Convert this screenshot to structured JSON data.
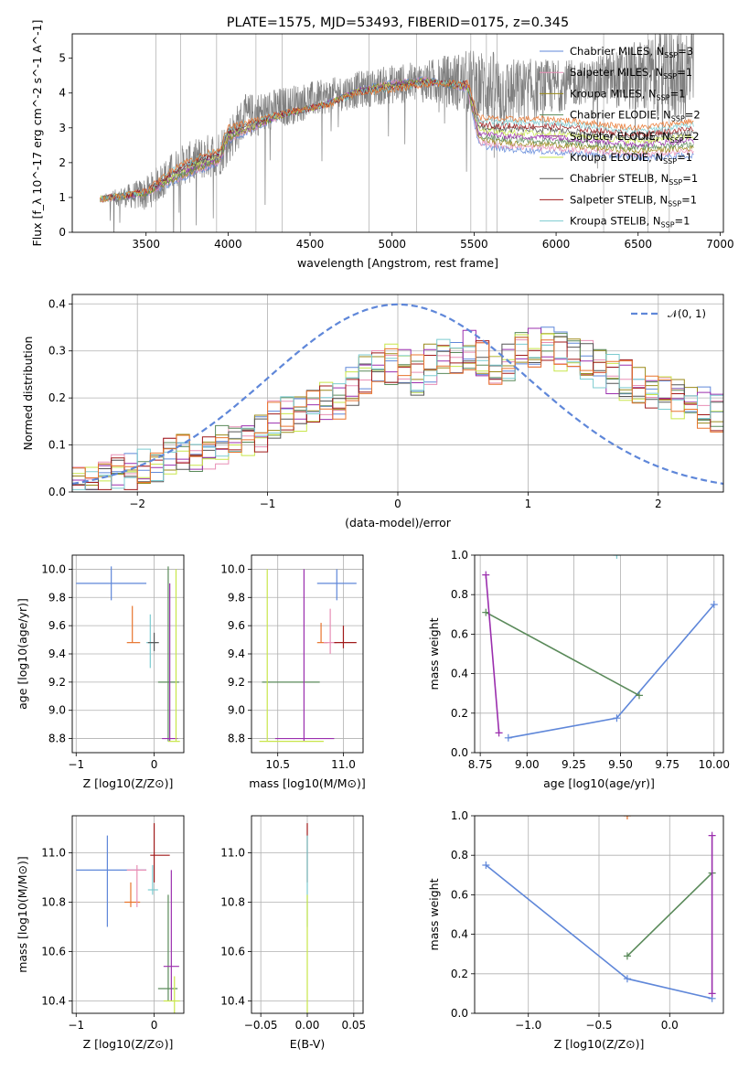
{
  "palette": {
    "chabrier_miles": "#5f87d9",
    "salpeter_miles": "#e88fb5",
    "kroupa_miles": "#9a8a1a",
    "chabrier_elodie": "#5a8a5a",
    "salpeter_elodie": "#9b2fae",
    "kroupa_elodie": "#c8e64a",
    "chabrier_stelib": "#555555",
    "salpeter_stelib": "#a01a1a",
    "kroupa_stelib": "#7ccbd0",
    "orange": "#e8742d",
    "gauss": "#5f87d9"
  },
  "chart_data": [
    {
      "id": "spectrum",
      "type": "line",
      "title": "PLATE=1575, MJD=53493, FIBERID=0175, z=0.345",
      "xlabel": "wavelength [Angstrom, rest frame]",
      "ylabel": "Flux [f_λ 10^-17 erg cm^-2 s^-1 A^-1]",
      "xlim": [
        3050,
        7020
      ],
      "ylim": [
        0,
        5.7
      ],
      "xticks": [
        3500,
        4000,
        4500,
        5000,
        5500,
        6000,
        6500,
        7000
      ],
      "yticks": [
        0,
        1,
        2,
        3,
        4,
        5
      ],
      "legend_position": "top-right",
      "legend": [
        {
          "name": "Chabrier MILES, N",
          "sub": "SSP",
          "eq": "=3",
          "color": "#5f87d9"
        },
        {
          "name": "Salpeter MILES, N",
          "sub": "SSP",
          "eq": "=1",
          "color": "#e88fb5"
        },
        {
          "name": "Kroupa MILES, N",
          "sub": "SSP",
          "eq": "=1",
          "color": "#9a8a1a"
        },
        {
          "name": "Chabrier ELODIE, N",
          "sub": "SSP",
          "eq": "=2",
          "color": "#5a8a5a"
        },
        {
          "name": "Salpeter ELODIE, N",
          "sub": "SSP",
          "eq": "=2",
          "color": "#9b2fae"
        },
        {
          "name": "Kroupa ELODIE, N",
          "sub": "SSP",
          "eq": "=1",
          "color": "#c8e64a"
        },
        {
          "name": "Chabrier STELIB, N",
          "sub": "SSP",
          "eq": "=1",
          "color": "#555555"
        },
        {
          "name": "Salpeter STELIB, N",
          "sub": "SSP",
          "eq": "=1",
          "color": "#a01a1a"
        },
        {
          "name": "Kroupa STELIB, N",
          "sub": "SSP",
          "eq": "=1",
          "color": "#7ccbd0"
        }
      ],
      "data_range": [
        3220,
        6840
      ],
      "continuum": [
        [
          3220,
          0.95
        ],
        [
          3500,
          1.1
        ],
        [
          3700,
          1.9
        ],
        [
          3950,
          2.3
        ],
        [
          4100,
          3.3
        ],
        [
          4500,
          3.8
        ],
        [
          4800,
          4.1
        ],
        [
          5000,
          4.25
        ],
        [
          5300,
          4.35
        ],
        [
          5500,
          4.3
        ],
        [
          5700,
          4.0
        ],
        [
          6000,
          4.2
        ],
        [
          6300,
          4.4
        ],
        [
          6600,
          4.5
        ],
        [
          6840,
          4.6
        ]
      ],
      "noise_scale": [
        [
          3220,
          0.1
        ],
        [
          3500,
          0.5
        ],
        [
          4000,
          0.7
        ],
        [
          4600,
          0.5
        ],
        [
          5200,
          0.6
        ],
        [
          5600,
          1.1
        ],
        [
          6200,
          0.6
        ],
        [
          6600,
          1.2
        ],
        [
          6840,
          1.5
        ]
      ],
      "spike_wavelengths": [
        3560,
        3710,
        3930,
        4170,
        4330,
        4860,
        5150,
        5480,
        5575,
        5640,
        6290,
        6560,
        6690
      ],
      "models_upper": [
        [
          3220,
          0.95
        ],
        [
          3500,
          1.2
        ],
        [
          3700,
          1.95
        ],
        [
          3950,
          2.4
        ],
        [
          4000,
          3.0
        ],
        [
          4300,
          3.4
        ],
        [
          4600,
          3.65
        ],
        [
          4800,
          4.0
        ],
        [
          5000,
          4.1
        ],
        [
          5200,
          4.25
        ],
        [
          5460,
          4.3
        ],
        [
          5530,
          3.3
        ],
        [
          5650,
          3.25
        ],
        [
          6000,
          3.25
        ],
        [
          6500,
          3.0
        ],
        [
          6840,
          3.2
        ]
      ],
      "models_lower": [
        [
          3220,
          0.95
        ],
        [
          3500,
          1.1
        ],
        [
          3700,
          1.5
        ],
        [
          3950,
          2.0
        ],
        [
          4000,
          2.6
        ],
        [
          4300,
          3.3
        ],
        [
          4600,
          3.7
        ],
        [
          4800,
          4.1
        ],
        [
          5000,
          4.3
        ],
        [
          5200,
          4.4
        ],
        [
          5460,
          4.1
        ],
        [
          5530,
          2.5
        ],
        [
          5650,
          2.4
        ],
        [
          6000,
          2.3
        ],
        [
          6500,
          2.15
        ],
        [
          6840,
          2.2
        ]
      ],
      "model_colors": [
        "#5f87d9",
        "#e88fb5",
        "#9a8a1a",
        "#5a8a5a",
        "#9b2fae",
        "#c8e64a",
        "#555555",
        "#a01a1a",
        "#7ccbd0",
        "#e8742d"
      ]
    },
    {
      "id": "residuals",
      "type": "line",
      "xlabel": "(data-model)/error",
      "ylabel": "Normed distribution",
      "xlim": [
        -2.5,
        2.5
      ],
      "ylim": [
        0,
        0.42
      ],
      "xticks": [
        -2,
        -1,
        0,
        1,
        2
      ],
      "yticks": [
        0.0,
        0.1,
        0.2,
        0.3,
        0.4
      ],
      "legend_position": "top-right",
      "gauss_label": "𝒩(0, 1)",
      "bins": 50,
      "profile": [
        0.025,
        0.03,
        0.035,
        0.04,
        0.045,
        0.05,
        0.06,
        0.07,
        0.08,
        0.085,
        0.09,
        0.1,
        0.105,
        0.11,
        0.13,
        0.15,
        0.16,
        0.17,
        0.18,
        0.19,
        0.2,
        0.22,
        0.25,
        0.26,
        0.27,
        0.26,
        0.25,
        0.27,
        0.28,
        0.29,
        0.3,
        0.28,
        0.27,
        0.28,
        0.3,
        0.31,
        0.32,
        0.3,
        0.3,
        0.28,
        0.26,
        0.25,
        0.24,
        0.23,
        0.22,
        0.21,
        0.2,
        0.19,
        0.18,
        0.17
      ],
      "series_colors": [
        "#5f87d9",
        "#e88fb5",
        "#9a8a1a",
        "#5a8a5a",
        "#9b2fae",
        "#c8e64a",
        "#555555",
        "#a01a1a",
        "#7ccbd0",
        "#e8742d"
      ]
    },
    {
      "id": "z_age",
      "type": "scatter",
      "xlabel": "Z [log10(Z/Z⊙)]",
      "ylabel": "age [log10(age/yr)]",
      "xlim": [
        -1.05,
        0.38
      ],
      "ylim": [
        8.7,
        10.1
      ],
      "xticks": [
        -1,
        0
      ],
      "yticks": [
        8.8,
        9.0,
        9.2,
        9.4,
        9.6,
        9.8,
        10.0
      ],
      "points": [
        {
          "x": -0.55,
          "y": 9.9,
          "ex": [
            -1.0,
            -0.1
          ],
          "ey": [
            9.78,
            10.02
          ],
          "color": "#5f87d9"
        },
        {
          "x": -0.28,
          "y": 9.48,
          "ex": [
            -0.35,
            -0.18
          ],
          "ey": [
            9.48,
            9.74
          ],
          "color": "#e8742d"
        },
        {
          "x": -0.05,
          "y": 9.48,
          "ex": [
            -0.1,
            0.02
          ],
          "ey": [
            9.3,
            9.68
          ],
          "color": "#7ccbd0"
        },
        {
          "x": 0.0,
          "y": 9.48,
          "ex": [
            -0.08,
            0.06
          ],
          "ey": [
            9.42,
            9.55
          ],
          "color": "#555555"
        },
        {
          "x": 0.18,
          "y": 9.2,
          "ex": [
            0.05,
            0.32
          ],
          "ey": [
            8.78,
            10.02
          ],
          "color": "#5a8a5a"
        },
        {
          "x": 0.2,
          "y": 8.8,
          "ex": [
            0.1,
            0.3
          ],
          "ey": [
            8.78,
            9.9
          ],
          "color": "#9b2fae"
        },
        {
          "x": 0.28,
          "y": 8.78,
          "ex": [
            0.18,
            0.33
          ],
          "ey": [
            8.78,
            10.0
          ],
          "color": "#c8e64a"
        }
      ]
    },
    {
      "id": "mass_age",
      "type": "scatter",
      "xlabel": "mass [log10(M/M⊙)]",
      "ylabel": "",
      "xlim": [
        10.3,
        11.15
      ],
      "ylim": [
        8.7,
        10.1
      ],
      "xticks": [
        10.5,
        11.0
      ],
      "yticks": [
        8.8,
        9.0,
        9.2,
        9.4,
        9.6,
        9.8,
        10.0
      ],
      "points": [
        {
          "x": 10.95,
          "y": 9.9,
          "ex": [
            10.8,
            11.1
          ],
          "ey": [
            9.78,
            10.0
          ],
          "color": "#5f87d9"
        },
        {
          "x": 10.83,
          "y": 9.48,
          "ex": [
            10.8,
            10.88
          ],
          "ey": [
            9.48,
            9.62
          ],
          "color": "#e8742d"
        },
        {
          "x": 10.9,
          "y": 9.48,
          "ex": [
            10.85,
            10.95
          ],
          "ey": [
            9.4,
            9.72
          ],
          "color": "#e88fb5"
        },
        {
          "x": 11.0,
          "y": 9.48,
          "ex": [
            10.93,
            11.1
          ],
          "ey": [
            9.44,
            9.6
          ],
          "color": "#a01a1a"
        },
        {
          "x": 10.6,
          "y": 9.2,
          "ex": [
            10.38,
            10.82
          ],
          "ey": [
            9.2,
            9.2
          ],
          "color": "#5a8a5a"
        },
        {
          "x": 10.7,
          "y": 8.8,
          "ex": [
            10.48,
            10.93
          ],
          "ey": [
            8.78,
            10.0
          ],
          "color": "#9b2fae"
        },
        {
          "x": 10.42,
          "y": 8.78,
          "ex": [
            10.36,
            10.85
          ],
          "ey": [
            8.78,
            10.0
          ],
          "color": "#c8e64a"
        }
      ]
    },
    {
      "id": "age_weight",
      "type": "line",
      "xlabel": "age [log10(age/yr)]",
      "ylabel": "mass weight",
      "xlim": [
        8.72,
        10.05
      ],
      "ylim": [
        0,
        1.0
      ],
      "xticks": [
        8.75,
        9.0,
        9.25,
        9.5,
        9.75,
        10.0
      ],
      "yticks": [
        0.0,
        0.2,
        0.4,
        0.6,
        0.8,
        1.0
      ],
      "series": [
        {
          "name": "Chabrier MILES",
          "color": "#5f87d9",
          "points": [
            [
              8.9,
              0.075
            ],
            [
              9.48,
              0.175
            ],
            [
              10.0,
              0.75
            ]
          ]
        },
        {
          "name": "Chabrier ELODIE",
          "color": "#5a8a5a",
          "points": [
            [
              8.78,
              0.71
            ],
            [
              9.6,
              0.29
            ]
          ]
        },
        {
          "name": "Salpeter ELODIE",
          "color": "#9b2fae",
          "points": [
            [
              8.78,
              0.9
            ],
            [
              8.85,
              0.1
            ]
          ]
        },
        {
          "name": "Kroupa STELIB",
          "color": "#7ccbd0",
          "points": [
            [
              9.48,
              1.0
            ]
          ]
        }
      ]
    },
    {
      "id": "z_mass",
      "type": "scatter",
      "xlabel": "Z [log10(Z/Z⊙)]",
      "ylabel": "mass [log10(M/M⊙)]",
      "xlim": [
        -1.05,
        0.38
      ],
      "ylim": [
        10.35,
        11.15
      ],
      "xticks": [
        -1,
        0
      ],
      "yticks": [
        10.4,
        10.6,
        10.8,
        11.0
      ],
      "points": [
        {
          "x": -0.6,
          "y": 10.93,
          "ex": [
            -1.0,
            -0.1
          ],
          "ey": [
            10.7,
            11.07
          ],
          "color": "#5f87d9"
        },
        {
          "x": -0.3,
          "y": 10.8,
          "ex": [
            -0.38,
            -0.18
          ],
          "ey": [
            10.78,
            10.88
          ],
          "color": "#e8742d"
        },
        {
          "x": -0.22,
          "y": 10.93,
          "ex": [
            -0.35,
            -0.1
          ],
          "ey": [
            10.78,
            10.95
          ],
          "color": "#e88fb5"
        },
        {
          "x": -0.02,
          "y": 10.85,
          "ex": [
            -0.08,
            0.05
          ],
          "ey": [
            10.83,
            10.95
          ],
          "color": "#7ccbd0"
        },
        {
          "x": 0.0,
          "y": 10.99,
          "ex": [
            -0.05,
            0.2
          ],
          "ey": [
            10.88,
            11.12
          ],
          "color": "#a01a1a"
        },
        {
          "x": 0.18,
          "y": 10.45,
          "ex": [
            0.05,
            0.3
          ],
          "ey": [
            10.4,
            10.83
          ],
          "color": "#5a8a5a"
        },
        {
          "x": 0.22,
          "y": 10.54,
          "ex": [
            0.12,
            0.32
          ],
          "ey": [
            10.4,
            10.93
          ],
          "color": "#9b2fae"
        },
        {
          "x": 0.26,
          "y": 10.4,
          "ex": [
            0.12,
            0.33
          ],
          "ey": [
            10.35,
            10.5
          ],
          "color": "#c8e64a"
        }
      ]
    },
    {
      "id": "ebv_mass",
      "type": "scatter",
      "xlabel": "E(B-V)",
      "ylabel": "",
      "xlim": [
        -0.06,
        0.06
      ],
      "ylim": [
        10.35,
        11.15
      ],
      "xticks": [
        -0.05,
        0.0,
        0.05
      ],
      "xtick_labels": [
        "−0.05",
        "0.00",
        "0.05"
      ],
      "yticks": [
        10.4,
        10.6,
        10.8,
        11.0
      ],
      "points": [
        {
          "x": 0.0,
          "y": 10.99,
          "ey": [
            10.88,
            11.12
          ],
          "color": "#a01a1a"
        },
        {
          "x": 0.0,
          "y": 10.85,
          "ey": [
            10.7,
            11.07
          ],
          "color": "#7ccbd0"
        },
        {
          "x": 0.0,
          "y": 10.6,
          "ey": [
            10.35,
            10.83
          ],
          "color": "#c8e64a"
        }
      ]
    },
    {
      "id": "z_weight",
      "type": "line",
      "xlabel": "Z [log10(Z/Z⊙)]",
      "ylabel": "mass weight",
      "xlim": [
        -1.38,
        0.38
      ],
      "ylim": [
        0,
        1.0
      ],
      "xticks": [
        -1.0,
        -0.5,
        0.0
      ],
      "xtick_labels": [
        "−1.0",
        "−0.5",
        "0.0"
      ],
      "yticks": [
        0.0,
        0.2,
        0.4,
        0.6,
        0.8,
        1.0
      ],
      "series": [
        {
          "name": "Chabrier MILES",
          "color": "#5f87d9",
          "points": [
            [
              -1.3,
              0.75
            ],
            [
              -0.3,
              0.175
            ],
            [
              0.3,
              0.075
            ]
          ]
        },
        {
          "name": "Chabrier ELODIE",
          "color": "#5a8a5a",
          "points": [
            [
              -0.3,
              0.29
            ],
            [
              0.3,
              0.71
            ]
          ]
        },
        {
          "name": "Salpeter ELODIE",
          "color": "#9b2fae",
          "points": [
            [
              0.3,
              0.9
            ],
            [
              0.3,
              0.1
            ]
          ]
        },
        {
          "name": "Kroupa MILES",
          "color": "#e8742d",
          "points": [
            [
              -0.3,
              1.0
            ]
          ]
        }
      ]
    }
  ]
}
